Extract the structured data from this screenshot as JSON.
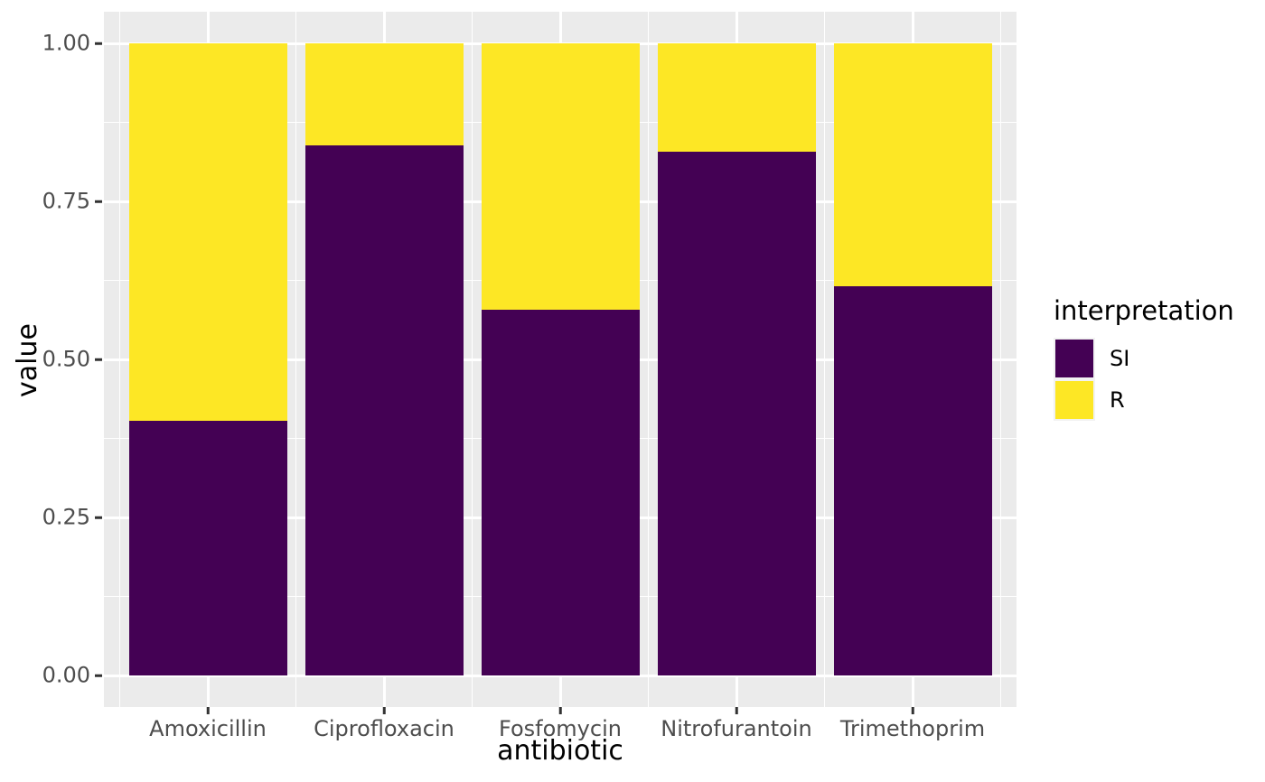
{
  "figure": {
    "background": "#FFFFFF",
    "panel_background": "#EBEBEB",
    "grid_color": "#FFFFFF",
    "axis_text_color": "#4D4D4D",
    "axis_title_color": "#000000",
    "tick_mark_color": "#333333"
  },
  "chart_data": {
    "type": "bar",
    "stacked": true,
    "orientation": "vertical",
    "title": "",
    "xlabel": "antibiotic",
    "ylabel": "value",
    "categories": [
      "Amoxicillin",
      "Ciprofloxacin",
      "Fosfomycin",
      "Nitrofurantoin",
      "Trimethoprim"
    ],
    "series": [
      {
        "name": "SI",
        "color": "#440154",
        "values": [
          0.403,
          0.838,
          0.578,
          0.829,
          0.616
        ]
      },
      {
        "name": "R",
        "color": "#FDE725",
        "values": [
          0.597,
          0.162,
          0.422,
          0.171,
          0.384
        ]
      }
    ],
    "ylim": [
      0,
      1
    ],
    "y_major_ticks": [
      {
        "label": "0.00",
        "value": 0.0
      },
      {
        "label": "0.25",
        "value": 0.25
      },
      {
        "label": "0.50",
        "value": 0.5
      },
      {
        "label": "0.75",
        "value": 0.75
      },
      {
        "label": "1.00",
        "value": 1.0
      }
    ],
    "y_minor_ticks": [
      0.125,
      0.375,
      0.625,
      0.875
    ],
    "grid": true,
    "bar_width_fraction": 0.9,
    "legend": {
      "title": "interpretation",
      "position": "right",
      "entries": [
        {
          "label": "SI",
          "color": "#440154"
        },
        {
          "label": "R",
          "color": "#FDE725"
        }
      ]
    }
  }
}
